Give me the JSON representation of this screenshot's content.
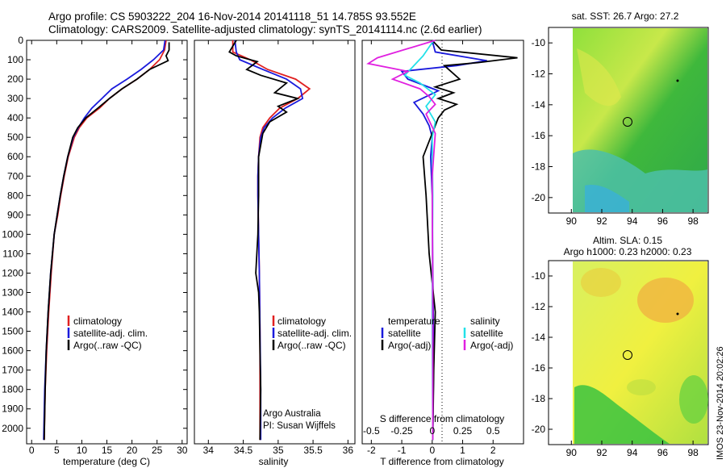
{
  "header": {
    "line1": "Argo profile: CS 5903222_204 16-Nov-2014 20141118_51 14.785S 93.552E",
    "line2": "Climatology: CARS2009. Satellite-adjusted climatology: synTS_20141114.nc (2.6d earlier)"
  },
  "colors": {
    "climatology": "#e02020",
    "satellite": "#1a1adc",
    "argo": "#000000",
    "sat_salinity": "#22e0e8",
    "argo_salinity": "#e020e0"
  },
  "chart_data": [
    {
      "type": "line",
      "name": "temperature",
      "xlabel": "temperature (deg C)",
      "ylabel": "",
      "xlim": [
        -1,
        31
      ],
      "ylim": [
        0,
        2080
      ],
      "xticks": [
        "0",
        "5",
        "10",
        "15",
        "20",
        "25",
        "30"
      ],
      "yticks": [
        "0",
        "100",
        "200",
        "300",
        "400",
        "500",
        "600",
        "700",
        "800",
        "900",
        "1000",
        "1100",
        "1200",
        "1300",
        "1400",
        "1500",
        "1600",
        "1700",
        "1800",
        "1900",
        "2000"
      ],
      "legend": [
        "climatology",
        "satellite-adj. clim.",
        "Argo(..raw -QC)"
      ],
      "series": [
        {
          "name": "climatology",
          "x": [
            26.8,
            26.5,
            25.5,
            23.5,
            21,
            18,
            15.5,
            13.5,
            11,
            9.5,
            8.5,
            7.3,
            6.5,
            5.8,
            5.2,
            4.5,
            3.9,
            3.4,
            3.0,
            2.7,
            2.5
          ],
          "y": [
            0,
            50,
            100,
            150,
            200,
            250,
            300,
            350,
            400,
            450,
            500,
            600,
            700,
            800,
            900,
            1000,
            1200,
            1400,
            1600,
            1800,
            2060
          ]
        },
        {
          "name": "satellite-adj. clim.",
          "x": [
            26.6,
            26.3,
            24.3,
            21.8,
            19,
            16,
            14,
            12,
            10.5,
            9.3,
            8.3,
            7.2,
            6.4,
            5.7,
            5.1,
            4.5,
            3.8,
            3.3,
            2.9,
            2.6,
            2.4
          ],
          "y": [
            0,
            50,
            100,
            150,
            200,
            250,
            300,
            350,
            400,
            450,
            500,
            600,
            700,
            800,
            900,
            1000,
            1200,
            1400,
            1600,
            1800,
            2060
          ]
        },
        {
          "name": "Argo(..raw -QC)",
          "x": [
            27.4,
            27.4,
            26.8,
            27.2,
            23.5,
            21,
            18,
            15.5,
            13.2,
            10.8,
            9.2,
            8.2,
            7.2,
            6.4,
            5.7,
            5.1,
            4.5,
            3.8,
            3.3,
            2.9,
            2.7,
            2.5
          ],
          "y": [
            10,
            50,
            80,
            105,
            150,
            200,
            250,
            300,
            350,
            400,
            450,
            500,
            600,
            700,
            800,
            900,
            1000,
            1200,
            1400,
            1600,
            1800,
            2060
          ]
        }
      ]
    },
    {
      "type": "line",
      "name": "salinity",
      "xlabel": "salinity",
      "xlim": [
        33.8,
        36.1
      ],
      "ylim": [
        0,
        2080
      ],
      "xticks": [
        "34",
        "34.5",
        "35",
        "35.5",
        "36"
      ],
      "legend": [
        "climatology",
        "satellite-adj. clim.",
        "Argo(..raw -QC)"
      ],
      "series": [
        {
          "name": "climatology",
          "x": [
            34.35,
            34.35,
            34.6,
            34.85,
            35.25,
            35.45,
            35.28,
            35.02,
            34.88,
            34.78,
            34.74,
            34.72,
            34.71,
            34.71,
            34.72,
            34.73,
            34.74,
            34.74,
            34.74
          ],
          "y": [
            0,
            60,
            100,
            150,
            200,
            250,
            300,
            350,
            400,
            450,
            500,
            600,
            700,
            800,
            1000,
            1200,
            1500,
            1800,
            2060
          ]
        },
        {
          "name": "satellite-adj. clim.",
          "x": [
            34.38,
            34.4,
            34.45,
            34.78,
            35.12,
            35.32,
            35.35,
            35.1,
            34.92,
            34.8,
            34.75,
            34.72,
            34.71,
            34.71,
            34.72,
            34.73,
            34.74,
            34.75,
            34.75
          ],
          "y": [
            0,
            60,
            100,
            150,
            200,
            250,
            300,
            350,
            400,
            450,
            500,
            600,
            700,
            800,
            1000,
            1200,
            1500,
            1800,
            2060
          ]
        },
        {
          "name": "Argo(..raw -QC)",
          "x": [
            34.4,
            34.3,
            34.4,
            34.7,
            34.55,
            34.75,
            35.12,
            34.95,
            35.28,
            35.0,
            35.12,
            34.88,
            34.78,
            34.72,
            34.72,
            34.71,
            34.68,
            34.72,
            34.73,
            34.74,
            34.75,
            34.74
          ],
          "y": [
            0,
            60,
            80,
            110,
            150,
            180,
            220,
            270,
            300,
            340,
            370,
            420,
            480,
            600,
            800,
            1000,
            1200,
            1300,
            1400,
            1600,
            1800,
            2060
          ]
        }
      ],
      "annotation": [
        "Argo Australia",
        "PI: Susan Wijffels"
      ]
    },
    {
      "type": "line",
      "name": "difference",
      "xlabel": "T difference from climatology",
      "top_label": "S difference from climatology",
      "xlim": [
        -2.3,
        3.0
      ],
      "ylim": [
        0,
        2080
      ],
      "xticks": [
        "-2",
        "-1",
        "0",
        "1",
        "2"
      ],
      "top_ticks": [
        "-0.5",
        "-0.25",
        "0",
        "0.25",
        "0.5"
      ],
      "legend_headers": [
        "temperature",
        "salinity"
      ],
      "legend_left": [
        "satellite",
        "Argo(-adj)"
      ],
      "legend_right": [
        "satellite",
        "Argo(-adj)"
      ],
      "series": [
        {
          "name": "T satellite",
          "x": [
            0,
            0.1,
            1.8,
            0.8,
            -1.0,
            -0.8,
            0.2,
            -0.6,
            -0.3,
            -0.1,
            0,
            -0.05,
            0,
            0.02,
            0.05,
            0.02
          ],
          "y": [
            0,
            60,
            105,
            130,
            160,
            200,
            260,
            320,
            380,
            440,
            500,
            600,
            800,
            1200,
            1600,
            2060
          ]
        },
        {
          "name": "T Argo",
          "x": [
            0,
            0.3,
            2.8,
            1.5,
            0.4,
            0.9,
            0.1,
            0.7,
            0.2,
            0.8,
            0.4,
            0.2,
            -0.3,
            -0.2,
            -0.1,
            0.1,
            0.05,
            0.02
          ],
          "y": [
            0,
            50,
            90,
            115,
            130,
            200,
            240,
            270,
            300,
            330,
            360,
            400,
            600,
            800,
            1100,
            1400,
            1700,
            2060
          ]
        },
        {
          "name": "S satellite",
          "x": [
            0.05,
            -0.3,
            -0.6,
            -0.9,
            -0.4,
            0.1,
            -0.2,
            0.1,
            0,
            0.02,
            0,
            0.02
          ],
          "y": [
            0,
            80,
            130,
            180,
            220,
            280,
            340,
            420,
            500,
            800,
            1400,
            2060
          ]
        },
        {
          "name": "S Argo",
          "x": [
            0.1,
            -1.8,
            -2.1,
            -0.8,
            -1.3,
            -0.4,
            -0.1,
            0.1,
            -0.2,
            0.1,
            0,
            0.02,
            0.02
          ],
          "y": [
            0,
            90,
            120,
            160,
            200,
            250,
            290,
            330,
            380,
            480,
            700,
            1400,
            2060
          ]
        }
      ]
    },
    {
      "type": "heatmap",
      "name": "sst_map",
      "title": "sat. SST: 26.7  Argo: 27.2",
      "xticks": [
        "90",
        "92",
        "94",
        "96",
        "98"
      ],
      "yticks": [
        "-10",
        "-12",
        "-14",
        "-16",
        "-18",
        "-20"
      ]
    },
    {
      "type": "heatmap",
      "name": "sla_map",
      "title1": "Altim. SLA: 0.15",
      "title2": "Argo h1000: 0.23 h2000: 0.23",
      "xticks": [
        "90",
        "92",
        "94",
        "96",
        "98"
      ],
      "yticks": [
        "-10",
        "-12",
        "-14",
        "-16",
        "-18",
        "-20"
      ],
      "stamp": "IMOS 23-Nov-2014 20:02:26"
    }
  ]
}
